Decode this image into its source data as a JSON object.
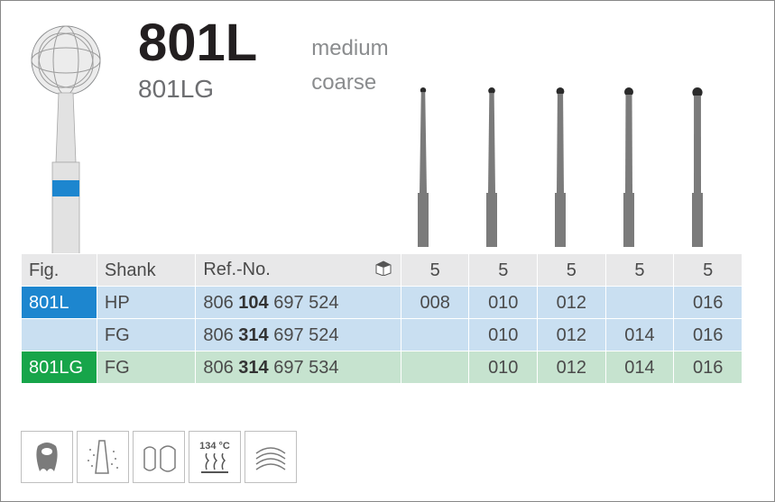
{
  "header": {
    "main_code": "801L",
    "sub_code": "801LG",
    "grade_main": "medium",
    "grade_sub": "coarse"
  },
  "large_bur": {
    "ball_fill": "#e8e8e8",
    "ball_stroke": "#8a8c8e",
    "band_color": "#1d86cf",
    "shaft_fill": "#dedede"
  },
  "shapes": {
    "count": 5,
    "ball_radii": [
      3.2,
      3.8,
      4.4,
      5.0,
      5.6
    ],
    "shaft_color": "#7b7b7b",
    "ball_color": "#2a2a2a"
  },
  "table": {
    "headers": {
      "fig": "Fig.",
      "shank": "Shank",
      "ref": "Ref.-No."
    },
    "pack_row": [
      "5",
      "5",
      "5",
      "5",
      "5"
    ],
    "rows": [
      {
        "style": "blue",
        "fig": "801L",
        "fig_badge": true,
        "shank": "HP",
        "ref_pre": "806 ",
        "ref_bold": "104",
        "ref_post": " 697 524",
        "sizes": [
          "008",
          "010",
          "012",
          "",
          "016"
        ]
      },
      {
        "style": "blue",
        "fig": "",
        "fig_badge": false,
        "shank": "FG",
        "ref_pre": "806 ",
        "ref_bold": "314",
        "ref_post": " 697 524",
        "sizes": [
          "",
          "010",
          "012",
          "014",
          "016"
        ]
      },
      {
        "style": "green",
        "fig": "801LG",
        "fig_badge": true,
        "shank": "FG",
        "ref_pre": "806 ",
        "ref_bold": "314",
        "ref_post": " 697 534",
        "sizes": [
          "",
          "010",
          "012",
          "014",
          "016"
        ]
      }
    ],
    "colors": {
      "header_bg": "#e8e8e9",
      "blue_row": "#c9dff1",
      "green_row": "#c6e3cf",
      "badge_blue": "#1d86cf",
      "badge_green": "#17a54a"
    }
  },
  "footer": {
    "autoclave_temp": "134 °C"
  }
}
